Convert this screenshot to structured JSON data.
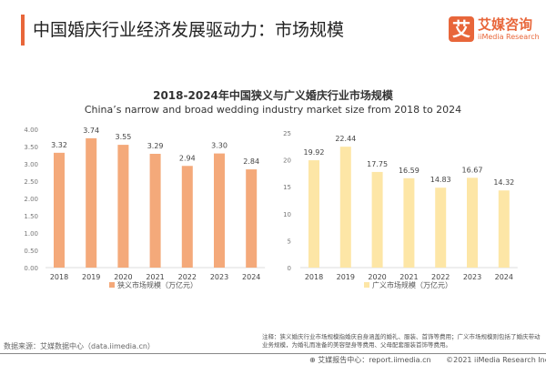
{
  "header": {
    "title": "中国婚庆行业经济发展驱动力：市场规模",
    "logo_mark": "艾",
    "logo_cn": "艾媒咨询",
    "logo_en": "iiMedia Research"
  },
  "chart_title": "2018-2024年中国狭义与广义婚庆行业市场规模",
  "chart_subtitle": "China’s narrow and broad wedding industry market size from 2018 to 2024",
  "chart_data": [
    {
      "type": "bar",
      "categories": [
        "2018",
        "2019",
        "2020",
        "2021",
        "2022",
        "2023",
        "2024"
      ],
      "series": [
        {
          "name": "狭义市场规模（万亿元）",
          "values": [
            3.32,
            3.74,
            3.55,
            3.29,
            2.94,
            3.3,
            2.84
          ],
          "labels": [
            "3.32",
            "3.74",
            "3.55",
            "3.29",
            "2.94",
            "3.30",
            "2.84"
          ]
        }
      ],
      "ylim": [
        0,
        4
      ],
      "yticks": [
        "0.00",
        "0.50",
        "1.00",
        "1.50",
        "2.00",
        "2.50",
        "3.00",
        "3.50",
        "4.00"
      ],
      "grid": false,
      "legend": "bottom",
      "color": "#f4a97a"
    },
    {
      "type": "bar",
      "categories": [
        "2018",
        "2019",
        "2020",
        "2021",
        "2022",
        "2023",
        "2024"
      ],
      "series": [
        {
          "name": "广义市场规模（万亿元）",
          "values": [
            19.92,
            22.44,
            17.75,
            16.59,
            14.83,
            16.67,
            14.32
          ],
          "labels": [
            "19.92",
            "22.44",
            "17.75",
            "16.59",
            "14.83",
            "16.67",
            "14.32"
          ]
        }
      ],
      "ylim": [
        0,
        25
      ],
      "yticks": [
        "0",
        "5",
        "10",
        "15",
        "20",
        "25"
      ],
      "grid": false,
      "legend": "bottom",
      "color": "#fde6a6"
    }
  ],
  "footer": {
    "source": "数据来源：艾媒数据中心（data.iimedia.cn）",
    "note": "注释：狭义婚庆行业市场规模指婚庆自身涵盖的婚礼、服装、首饰等费用；广义市场规模则包括了婚庆带动业务规模，为婚礼而准备的美容塑身等费用、父母配套服装首饰等费用。",
    "report": "艾媒报告中心：report.iimedia.cn",
    "copyright": "©2021  iiMedia Research  Inc"
  }
}
